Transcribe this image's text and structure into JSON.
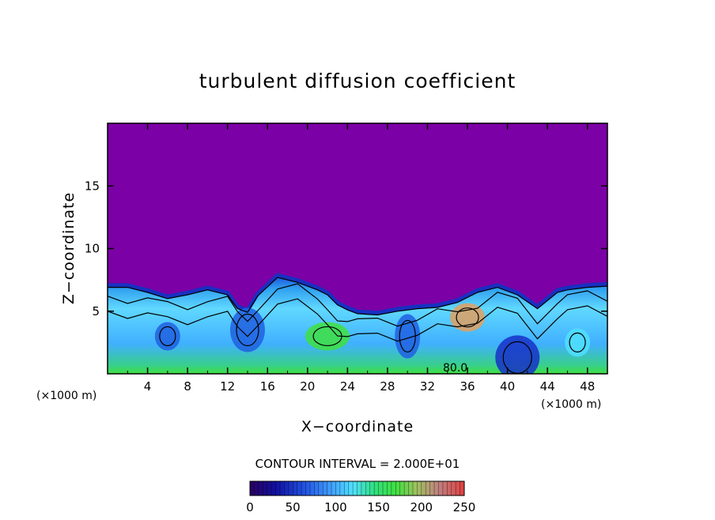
{
  "chart_data": {
    "type": "heatmap",
    "title": "turbulent diffusion coefficient",
    "xlabel": "X−coordinate",
    "ylabel": "Z−coordinate",
    "x_unit_left": "(×1000 m)",
    "x_unit_right": "(×1000 m)",
    "xlim": [
      0,
      50
    ],
    "ylim": [
      0,
      20
    ],
    "x_ticks": [
      "4",
      "8",
      "12",
      "16",
      "20",
      "24",
      "28",
      "32",
      "36",
      "40",
      "44",
      "48"
    ],
    "x_tick_values": [
      4,
      8,
      12,
      16,
      20,
      24,
      28,
      32,
      36,
      40,
      44,
      48
    ],
    "y_ticks": [
      "5",
      "10",
      "15"
    ],
    "y_tick_values": [
      5,
      10,
      15
    ],
    "contour_interval": "CONTOUR INTERVAL = 2.000E+01",
    "contour_label": "80.0",
    "colorbar": {
      "min": 0,
      "max": 250,
      "tick_labels": [
        "0",
        "50",
        "100",
        "150",
        "200",
        "250"
      ],
      "tick_values": [
        0,
        50,
        100,
        150,
        200,
        250
      ]
    },
    "background_value": 0,
    "boundary_layer_top_km": [
      [
        0,
        7.2
      ],
      [
        2,
        7.2
      ],
      [
        4,
        6.8
      ],
      [
        6,
        6.3
      ],
      [
        8,
        6.6
      ],
      [
        10,
        7.0
      ],
      [
        12,
        6.6
      ],
      [
        13,
        5.5
      ],
      [
        14,
        5.2
      ],
      [
        15,
        6.5
      ],
      [
        17,
        8.0
      ],
      [
        19,
        7.6
      ],
      [
        21,
        7.0
      ],
      [
        22,
        6.6
      ],
      [
        23,
        5.8
      ],
      [
        24,
        5.4
      ],
      [
        25,
        5.1
      ],
      [
        27,
        5.0
      ],
      [
        29,
        5.3
      ],
      [
        31,
        5.5
      ],
      [
        33,
        5.6
      ],
      [
        35,
        6.0
      ],
      [
        37,
        6.8
      ],
      [
        39,
        7.2
      ],
      [
        41,
        6.6
      ],
      [
        43,
        5.5
      ],
      [
        45,
        6.8
      ],
      [
        46,
        7.0
      ],
      [
        48,
        7.2
      ],
      [
        50,
        7.3
      ]
    ],
    "plumes": [
      {
        "x": 6,
        "z": 3.0,
        "value": 90
      },
      {
        "x": 14,
        "z": 3.5,
        "value": 70
      },
      {
        "x": 22,
        "z": 3.0,
        "value": 150
      },
      {
        "x": 30,
        "z": 3.0,
        "value": 80
      },
      {
        "x": 36,
        "z": 4.5,
        "value": 200
      },
      {
        "x": 41,
        "z": 1.3,
        "value": 60
      },
      {
        "x": 47,
        "z": 2.5,
        "value": 110
      }
    ],
    "colors": {
      "background": "#7b00a6",
      "low": "#2020d0",
      "mid": "#40a0ff",
      "cyan": "#50e0ff",
      "green": "#30e060",
      "high": "#e04020"
    }
  }
}
